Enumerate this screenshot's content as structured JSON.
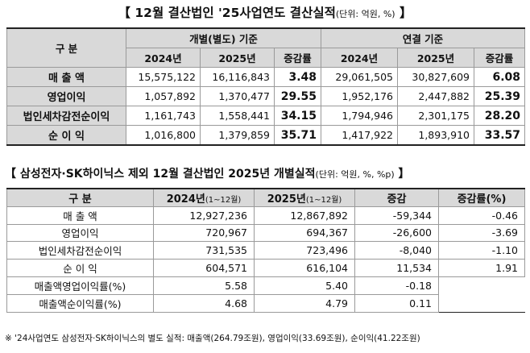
{
  "title1": {
    "main": "【 12월 결산법인 '25사업연도 결산실적",
    "unit": "(단위: 억원, %)",
    "close": " 】"
  },
  "table1": {
    "col_category": "구  분",
    "group_separate": "개별(별도) 기준",
    "group_consolidated": "연결  기준",
    "subheaders": [
      "2024년",
      "2025년",
      "증감률",
      "2024년",
      "2025년",
      "증감률"
    ],
    "rows": [
      {
        "label": "매 출 액",
        "values": [
          "15,575,122",
          "16,116,843",
          "3.48",
          "29,061,505",
          "30,827,609",
          "6.08"
        ]
      },
      {
        "label": "영업이익",
        "values": [
          "1,057,892",
          "1,370,477",
          "29.55",
          "1,952,176",
          "2,447,882",
          "25.39"
        ]
      },
      {
        "label": "법인세차감전순이익",
        "values": [
          "1,161,743",
          "1,558,441",
          "34.15",
          "1,794,946",
          "2,301,175",
          "28.20"
        ]
      },
      {
        "label": "순 이 익",
        "values": [
          "1,016,800",
          "1,379,859",
          "35.71",
          "1,417,922",
          "1,893,910",
          "33.57"
        ]
      }
    ]
  },
  "title2": {
    "main": "【 삼성전자·SK하이닉스 제외 12월 결산법인 2025년 개별실적",
    "unit": "(단위: 억원, %, %p)",
    "close": " 】"
  },
  "table2": {
    "headers": {
      "category": "구  분",
      "y2024": "2024년",
      "y2024_sub": "(1~12월)",
      "y2025": "2025년",
      "y2025_sub": "(1~12월)",
      "change": "증감",
      "rate": "증감률(%)"
    },
    "rows": [
      {
        "label": "매 출 액",
        "values": [
          "12,927,236",
          "12,867,892",
          "-59,344",
          "-0.46"
        ]
      },
      {
        "label": "영업이익",
        "values": [
          "720,967",
          "694,367",
          "-26,600",
          "-3.69"
        ]
      },
      {
        "label": "법인세차감전순이익",
        "values": [
          "731,535",
          "723,496",
          "-8,040",
          "-1.10"
        ]
      },
      {
        "label": "순 이 익",
        "values": [
          "604,571",
          "616,104",
          "11,534",
          "1.91"
        ]
      },
      {
        "label": "매출액영업이익률(%)",
        "values": [
          "5.58",
          "5.40",
          "-0.18",
          ""
        ]
      },
      {
        "label": "매출액순이익률(%)",
        "values": [
          "4.68",
          "4.79",
          "0.11",
          ""
        ]
      }
    ]
  },
  "footnote": "※ '24사업연도 삼성전자·SK하이닉스의 별도 실적: 매출액(264.79조원), 영업이익(33.69조원), 순이익(41.22조원)"
}
